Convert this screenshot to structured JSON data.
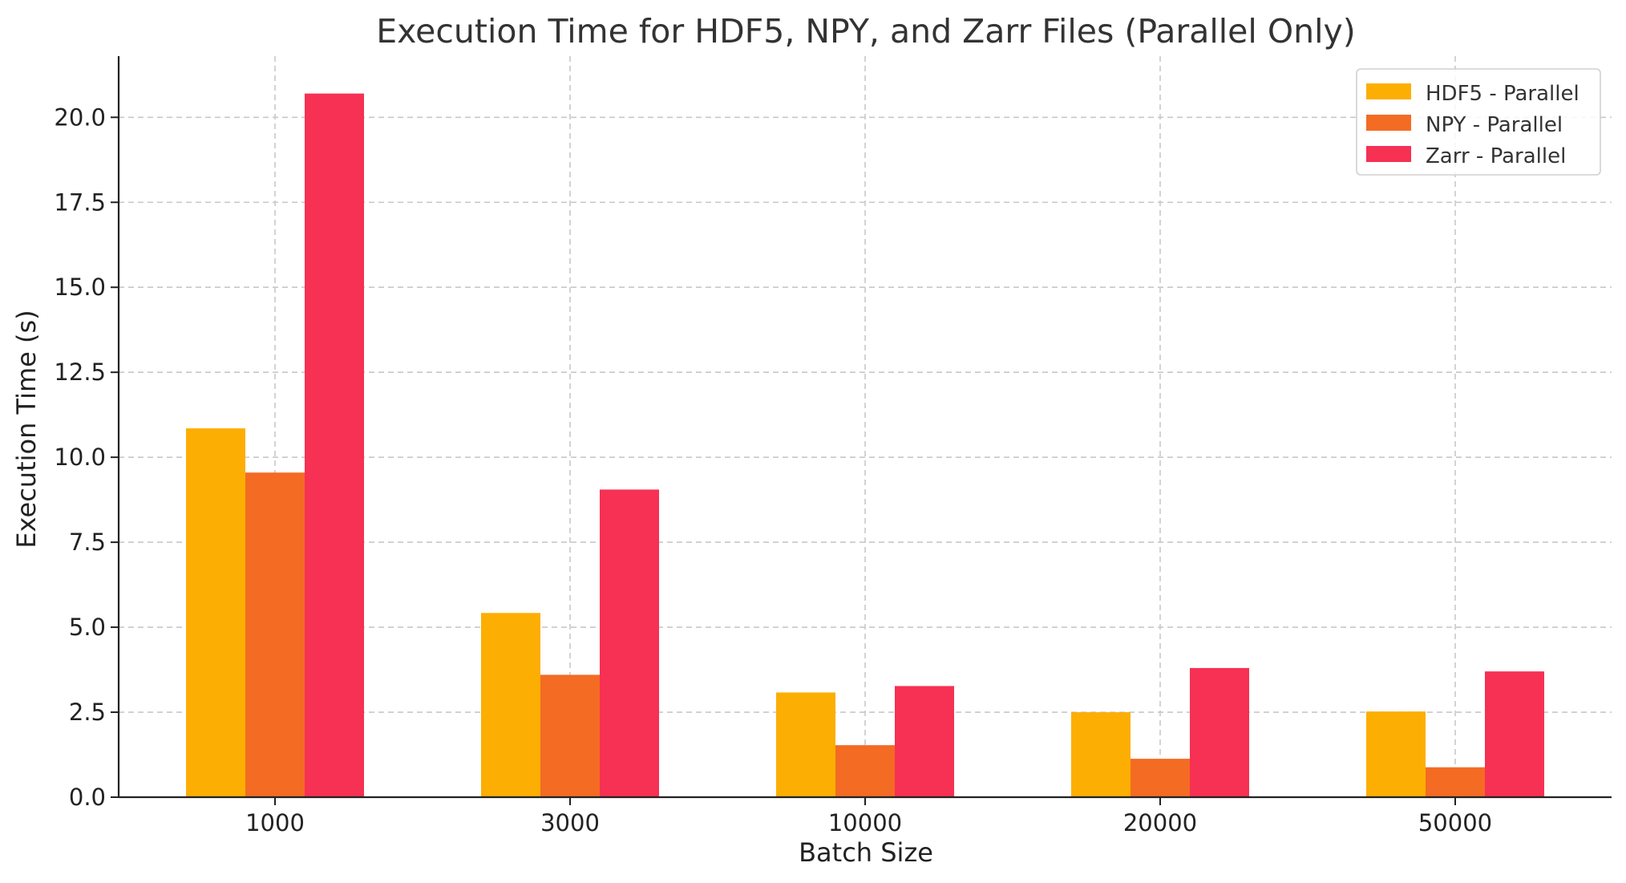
{
  "chart_data": {
    "type": "bar",
    "title": "Execution Time for HDF5, NPY, and Zarr Files (Parallel Only)",
    "xlabel": "Batch Size",
    "ylabel": "Execution Time (s)",
    "categories": [
      "1000",
      "3000",
      "10000",
      "20000",
      "50000"
    ],
    "series": [
      {
        "name": "HDF5 - Parallel",
        "color": "#fdae03",
        "values": [
          10.85,
          5.42,
          3.08,
          2.5,
          2.52
        ]
      },
      {
        "name": "NPY - Parallel",
        "color": "#f46b23",
        "values": [
          9.55,
          3.6,
          1.53,
          1.13,
          0.88
        ]
      },
      {
        "name": "Zarr - Parallel",
        "color": "#f63153",
        "values": [
          20.7,
          9.05,
          3.27,
          3.8,
          3.7
        ]
      }
    ],
    "ylim": [
      0,
      21.8
    ],
    "yticks": [
      0,
      2.5,
      5,
      7.5,
      10,
      12.5,
      15,
      17.5,
      20
    ],
    "ytick_labels": [
      "0.0",
      "2.5",
      "5.0",
      "7.5",
      "10.0",
      "12.5",
      "15.0",
      "17.5",
      "20.0"
    ],
    "grid": true,
    "legend_position": "top-right"
  }
}
